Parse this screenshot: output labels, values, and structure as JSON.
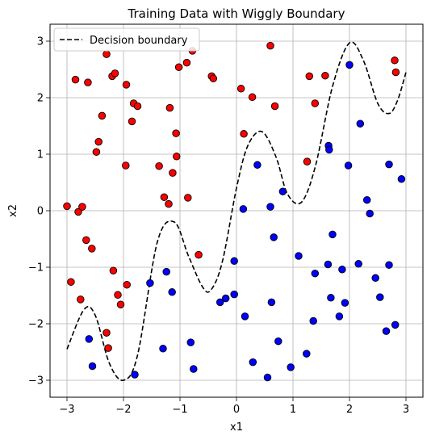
{
  "chart_data": {
    "type": "scatter",
    "title": "Training Data with Wiggly Boundary",
    "xlabel": "x1",
    "ylabel": "x2",
    "xlim": [
      -3.3,
      3.3
    ],
    "ylim": [
      -3.3,
      3.3
    ],
    "xticks": [
      -3,
      -2,
      -1,
      0,
      1,
      2,
      3
    ],
    "yticks": [
      -3,
      -2,
      -1,
      0,
      1,
      2,
      3
    ],
    "grid": true,
    "legend": {
      "position": "top-left",
      "entries": [
        "Decision boundary"
      ]
    },
    "colors": {
      "red_class": "#ff0000",
      "blue_class": "#0000ff",
      "boundary": "#000000",
      "grid": "#b0b0b0"
    },
    "boundary": {
      "name": "Decision boundary",
      "style": "dashed",
      "x": [
        -3.0,
        -2.7,
        -2.5,
        -2.25,
        -2.0,
        -1.75,
        -1.4,
        -1.1,
        -0.85,
        -0.6,
        -0.45,
        -0.25,
        0.0,
        0.2,
        0.45,
        0.7,
        0.9,
        1.15,
        1.4,
        1.7,
        2.0,
        2.25,
        2.5,
        2.7,
        2.85,
        3.0
      ],
      "y": [
        -2.45,
        -1.75,
        -1.85,
        -2.7,
        -3.0,
        -2.55,
        -0.55,
        -0.2,
        -0.8,
        -1.35,
        -1.4,
        -0.9,
        0.4,
        1.15,
        1.4,
        0.95,
        0.3,
        0.15,
        0.8,
        2.2,
        2.97,
        2.65,
        1.9,
        1.72,
        1.95,
        2.45
      ]
    },
    "series": [
      {
        "class": "red",
        "points": [
          [
            -3.0,
            0.08
          ],
          [
            -2.85,
            2.32
          ],
          [
            -2.8,
            -0.02
          ],
          [
            -2.73,
            0.07
          ],
          [
            -2.66,
            -0.52
          ],
          [
            -2.63,
            2.27
          ],
          [
            -2.56,
            -0.67
          ],
          [
            -2.48,
            1.04
          ],
          [
            -2.44,
            1.22
          ],
          [
            -2.38,
            1.68
          ],
          [
            -2.3,
            2.77
          ],
          [
            -2.2,
            2.38
          ],
          [
            -2.15,
            2.43
          ],
          [
            -2.18,
            -1.06
          ],
          [
            -2.1,
            -1.49
          ],
          [
            -2.05,
            -1.66
          ],
          [
            -1.96,
            0.8
          ],
          [
            -1.95,
            2.23
          ],
          [
            -1.94,
            -1.31
          ],
          [
            -1.85,
            1.58
          ],
          [
            -1.82,
            1.9
          ],
          [
            -1.75,
            1.85
          ],
          [
            -1.37,
            0.79
          ],
          [
            -1.28,
            0.24
          ],
          [
            -1.2,
            0.12
          ],
          [
            -1.18,
            1.82
          ],
          [
            -1.13,
            0.67
          ],
          [
            -1.07,
            1.37
          ],
          [
            -1.06,
            0.96
          ],
          [
            -1.02,
            2.54
          ],
          [
            -0.88,
            2.62
          ],
          [
            -0.86,
            0.23
          ],
          [
            -0.78,
            2.83
          ],
          [
            -0.67,
            -0.78
          ],
          [
            -0.44,
            2.38
          ],
          [
            -0.41,
            2.34
          ],
          [
            0.08,
            2.16
          ],
          [
            0.13,
            1.36
          ],
          [
            0.28,
            2.01
          ],
          [
            0.6,
            2.92
          ],
          [
            0.68,
            1.85
          ],
          [
            1.25,
            0.87
          ],
          [
            1.29,
            2.38
          ],
          [
            1.39,
            1.9
          ],
          [
            1.57,
            2.39
          ],
          [
            2.8,
            2.66
          ],
          [
            2.82,
            2.45
          ],
          [
            -2.93,
            -1.26
          ],
          [
            -2.76,
            -1.57
          ],
          [
            -2.3,
            -2.16
          ],
          [
            -2.27,
            -2.43
          ]
        ]
      },
      {
        "class": "blue",
        "points": [
          [
            -2.61,
            -2.27
          ],
          [
            -2.55,
            -2.75
          ],
          [
            -1.8,
            -2.9
          ],
          [
            -1.53,
            -1.28
          ],
          [
            -1.3,
            -2.44
          ],
          [
            -1.24,
            -1.08
          ],
          [
            -1.14,
            -1.44
          ],
          [
            -0.81,
            -2.33
          ],
          [
            -0.76,
            -2.8
          ],
          [
            -0.29,
            -1.62
          ],
          [
            -0.19,
            -1.55
          ],
          [
            -0.04,
            -0.89
          ],
          [
            -0.04,
            -1.48
          ],
          [
            0.12,
            0.03
          ],
          [
            0.15,
            -1.87
          ],
          [
            0.29,
            -2.68
          ],
          [
            0.37,
            0.81
          ],
          [
            0.55,
            -2.95
          ],
          [
            0.6,
            0.07
          ],
          [
            0.62,
            -1.62
          ],
          [
            0.66,
            -0.47
          ],
          [
            0.74,
            -2.31
          ],
          [
            0.82,
            0.34
          ],
          [
            0.96,
            -2.77
          ],
          [
            1.1,
            -0.8
          ],
          [
            1.24,
            -2.53
          ],
          [
            1.36,
            -1.95
          ],
          [
            1.39,
            -1.11
          ],
          [
            1.62,
            -0.95
          ],
          [
            1.63,
            1.15
          ],
          [
            1.64,
            1.08
          ],
          [
            1.67,
            -1.54
          ],
          [
            1.7,
            -0.42
          ],
          [
            1.82,
            -1.87
          ],
          [
            1.87,
            -1.04
          ],
          [
            1.92,
            -1.63
          ],
          [
            1.98,
            0.8
          ],
          [
            2.0,
            2.58
          ],
          [
            2.16,
            -0.94
          ],
          [
            2.19,
            1.54
          ],
          [
            2.31,
            0.19
          ],
          [
            2.36,
            -0.05
          ],
          [
            2.46,
            -1.19
          ],
          [
            2.54,
            -1.53
          ],
          [
            2.65,
            -2.13
          ],
          [
            2.7,
            -0.96
          ],
          [
            2.7,
            0.82
          ],
          [
            2.81,
            -2.02
          ],
          [
            2.92,
            0.56
          ]
        ]
      }
    ]
  }
}
